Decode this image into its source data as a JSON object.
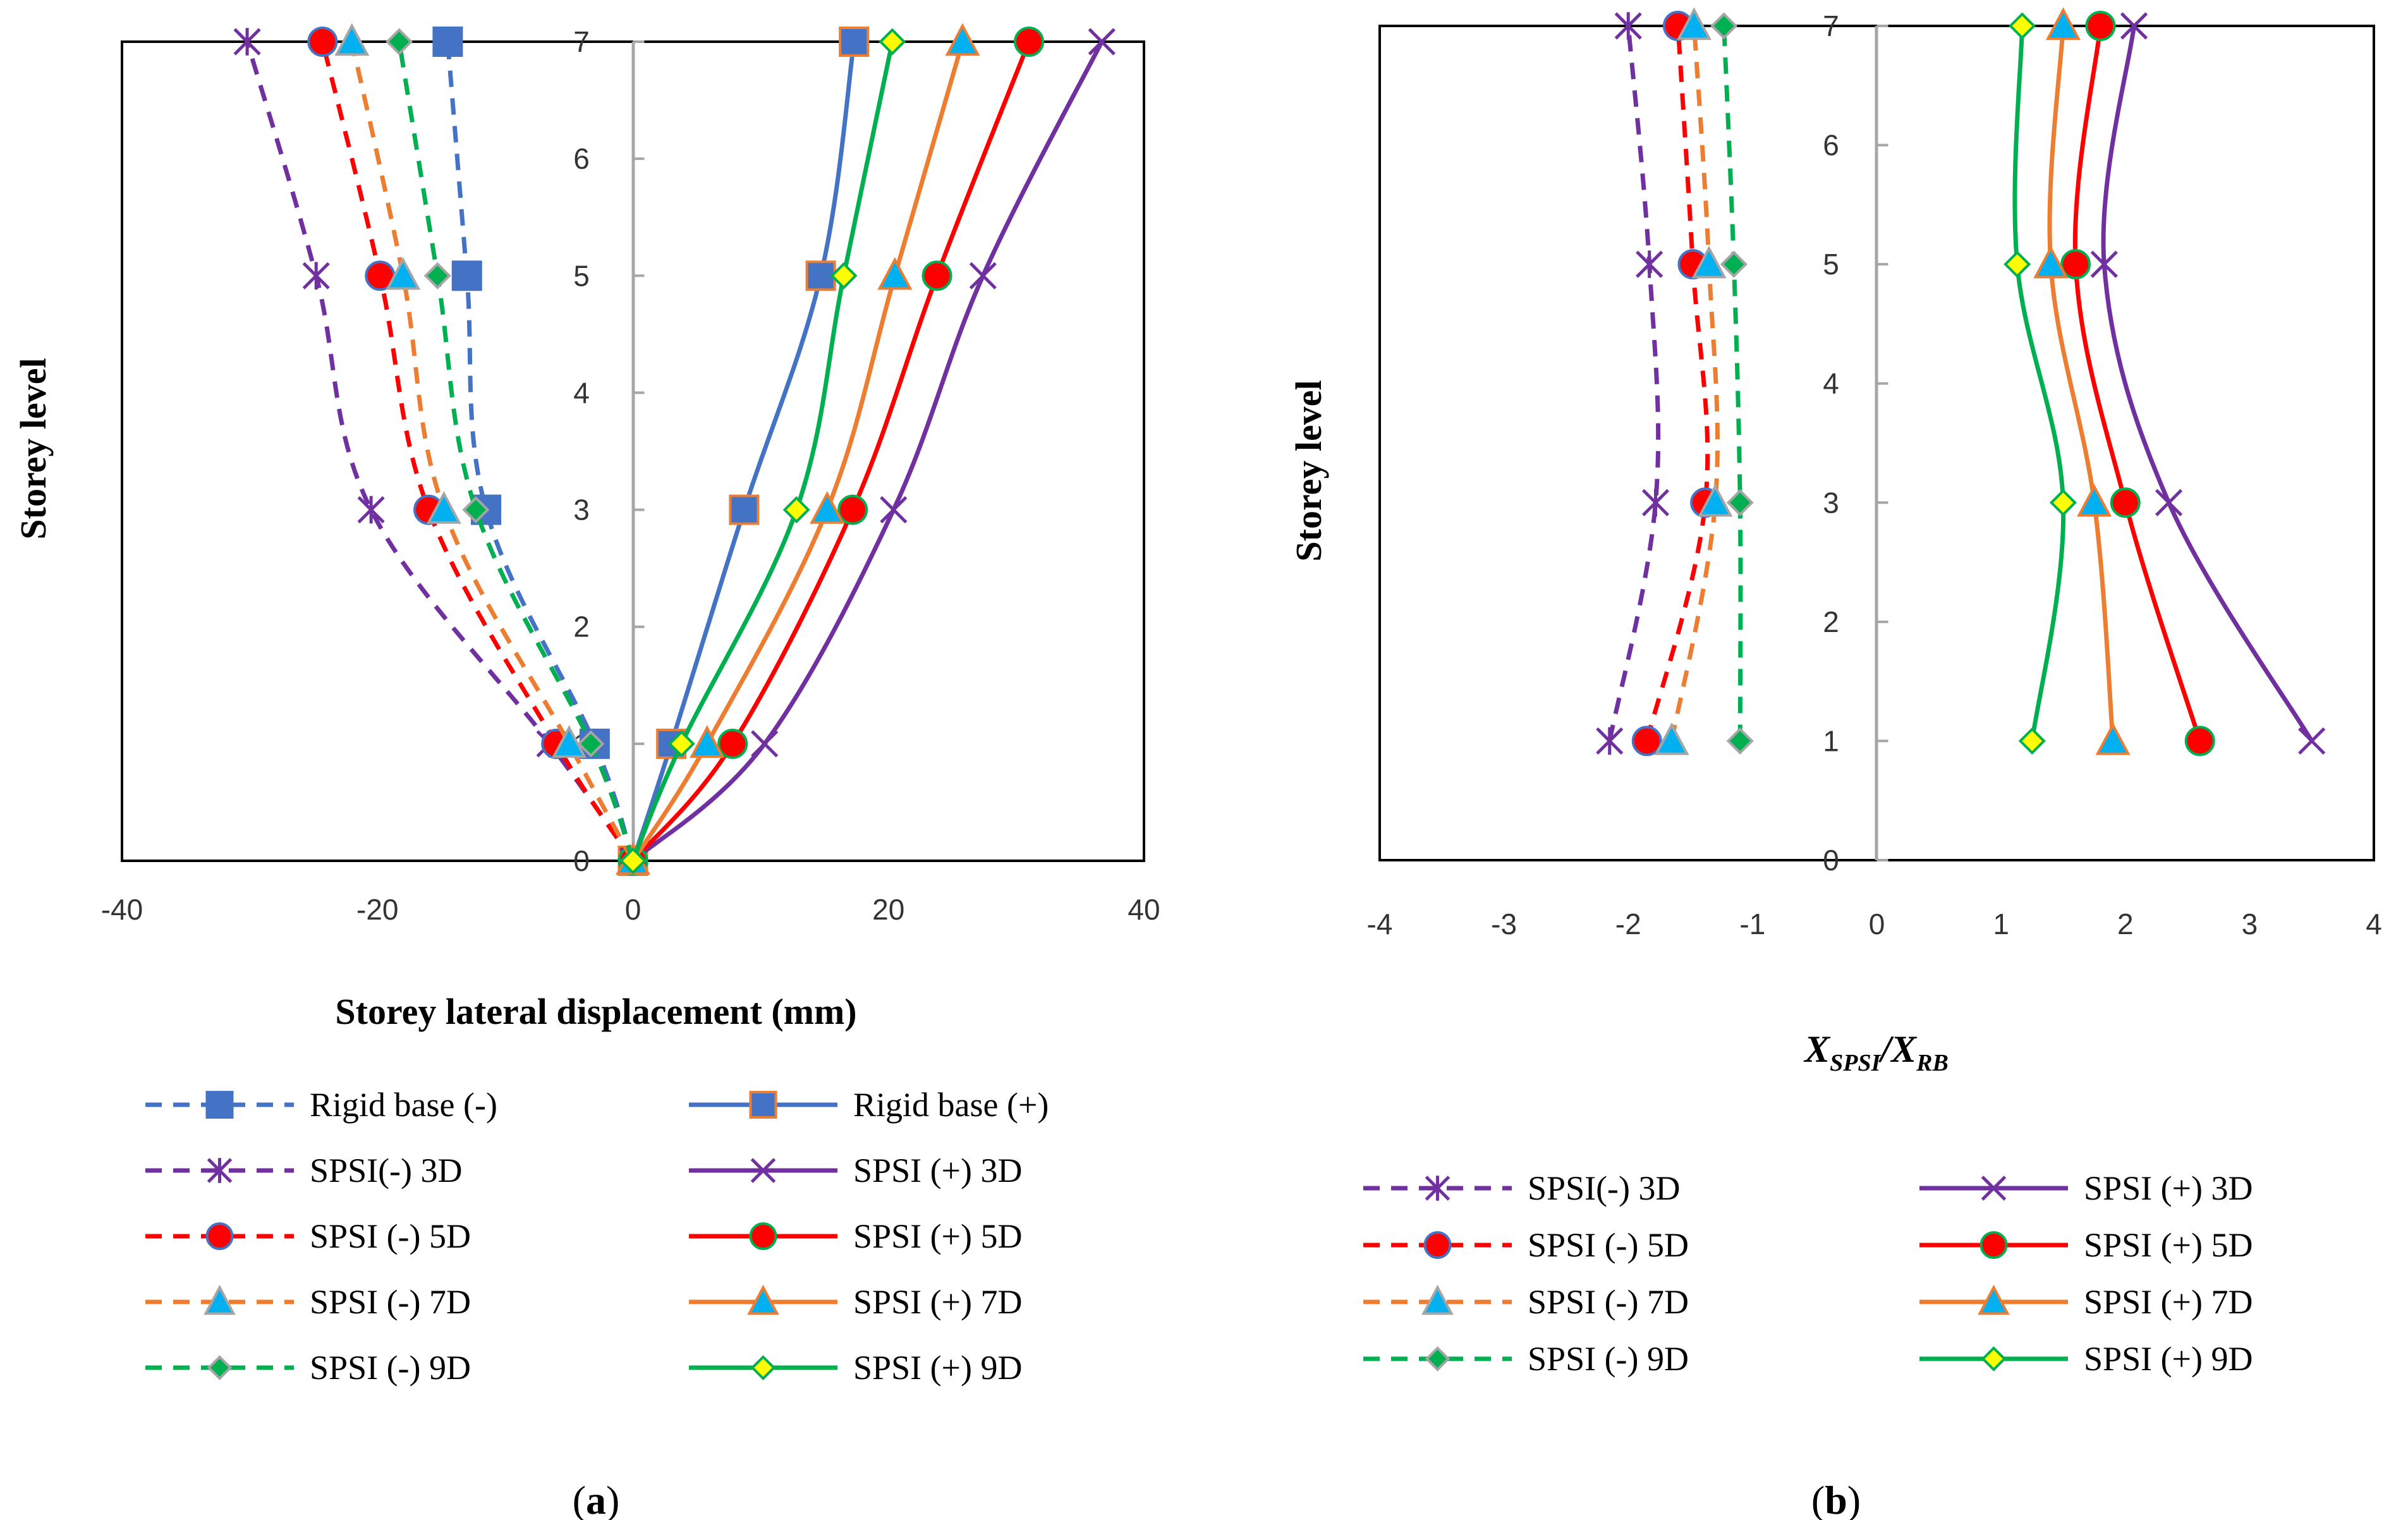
{
  "colors": {
    "rigid": "#4472C4",
    "rigid_marker_plus": "#4472C4",
    "rigid_marker_plus_edge": "#ED7D31",
    "d3": "#7030A0",
    "d5": "#FF0000",
    "d7": "#ED7D31",
    "d9": "#00B050",
    "marker_cyan": "#00B0F0",
    "marker_green": "#00B050",
    "marker_yellow": "#FFFF00",
    "marker_red": "#FF0000",
    "marker_edge_blue": "#4472C4",
    "marker_edge_grey": "#A5A5A5",
    "marker_edge_orange": "#ED7D31",
    "marker_edge_yellow": "#FFC000",
    "marker_edge_dkgreen": "#00B050",
    "axis": "#000000",
    "zero_line": "#A6A6A6",
    "tick_text": "#333333"
  },
  "chart_data": [
    {
      "panel": "a",
      "type": "line",
      "label_text": "a",
      "xlabel": "Storey lateral displacement (mm)",
      "ylabel": "Storey level",
      "xlim": [
        -40,
        40
      ],
      "ylim": [
        0,
        7
      ],
      "xticks": [
        "-40",
        "-20",
        "0",
        "20",
        "40"
      ],
      "yticks": [
        "0",
        "1",
        "2",
        "3",
        "4",
        "5",
        "6",
        "7"
      ],
      "legend_position": "bottom",
      "series": [
        {
          "name": "Rigid base (-)",
          "color_key": "rigid",
          "dashed": true,
          "marker": "square",
          "marker_fill": "rigid",
          "marker_edge": "rigid",
          "points": [
            [
              0,
              0
            ],
            [
              -3,
              1
            ],
            [
              -11.5,
              3
            ],
            [
              -13,
              5
            ],
            [
              -14.5,
              7
            ]
          ]
        },
        {
          "name": "Rigid base (+)",
          "color_key": "rigid",
          "dashed": false,
          "marker": "square",
          "marker_fill": "rigid",
          "marker_edge": "rigid_marker_plus_edge",
          "points": [
            [
              0,
              0
            ],
            [
              3,
              1
            ],
            [
              8.7,
              3
            ],
            [
              14.7,
              5
            ],
            [
              17.3,
              7
            ]
          ]
        },
        {
          "name": "SPSI(-) 3D",
          "color_key": "d3",
          "dashed": true,
          "marker": "asterisk",
          "marker_fill": "d3",
          "marker_edge": "d3",
          "points": [
            [
              0,
              0
            ],
            [
              -6.5,
              1
            ],
            [
              -20.5,
              3
            ],
            [
              -24.8,
              5
            ],
            [
              -30.2,
              7
            ]
          ]
        },
        {
          "name": "SPSI (+) 3D",
          "color_key": "d3",
          "dashed": false,
          "marker": "cross",
          "marker_fill": "d3",
          "marker_edge": "d3",
          "points": [
            [
              0,
              0
            ],
            [
              10.3,
              1
            ],
            [
              20.4,
              3
            ],
            [
              27.4,
              5
            ],
            [
              36.7,
              7
            ]
          ]
        },
        {
          "name": "SPSI (-) 5D",
          "color_key": "d5",
          "dashed": true,
          "marker": "circle",
          "marker_fill": "marker_red",
          "marker_edge": "marker_edge_blue",
          "points": [
            [
              0,
              0
            ],
            [
              -6,
              1
            ],
            [
              -16,
              3
            ],
            [
              -19.8,
              5
            ],
            [
              -24.3,
              7
            ]
          ]
        },
        {
          "name": "SPSI (+) 5D",
          "color_key": "d5",
          "dashed": false,
          "marker": "circle",
          "marker_fill": "marker_red",
          "marker_edge": "marker_edge_dkgreen",
          "points": [
            [
              0,
              0
            ],
            [
              7.8,
              1
            ],
            [
              17.2,
              3
            ],
            [
              23.8,
              5
            ],
            [
              31,
              7
            ]
          ]
        },
        {
          "name": "SPSI (-) 7D",
          "color_key": "d7",
          "dashed": true,
          "marker": "triangle",
          "marker_fill": "marker_cyan",
          "marker_edge": "marker_edge_grey",
          "points": [
            [
              0,
              0
            ],
            [
              -5,
              1
            ],
            [
              -14.8,
              3
            ],
            [
              -18,
              5
            ],
            [
              -22,
              7
            ]
          ]
        },
        {
          "name": "SPSI (+) 7D",
          "color_key": "d7",
          "dashed": false,
          "marker": "triangle",
          "marker_fill": "marker_cyan",
          "marker_edge": "marker_edge_orange",
          "points": [
            [
              0,
              0
            ],
            [
              5.8,
              1
            ],
            [
              15.2,
              3
            ],
            [
              20.5,
              5
            ],
            [
              25.8,
              7
            ]
          ]
        },
        {
          "name": "SPSI (-) 9D",
          "color_key": "d9",
          "dashed": true,
          "marker": "diamond",
          "marker_fill": "marker_green",
          "marker_edge": "marker_edge_grey",
          "points": [
            [
              0,
              0
            ],
            [
              -3.3,
              1
            ],
            [
              -12.3,
              3
            ],
            [
              -15.3,
              5
            ],
            [
              -18.3,
              7
            ]
          ]
        },
        {
          "name": "SPSI (+) 9D",
          "color_key": "d9",
          "dashed": false,
          "marker": "diamond",
          "marker_fill": "marker_yellow",
          "marker_edge": "marker_edge_dkgreen",
          "points": [
            [
              0,
              0
            ],
            [
              3.8,
              1
            ],
            [
              12.8,
              3
            ],
            [
              16.5,
              5
            ],
            [
              20.3,
              7
            ]
          ]
        }
      ]
    },
    {
      "panel": "b",
      "type": "line",
      "label_text": "b",
      "xlabel_main": "X",
      "xlabel_sub1": "SPSI",
      "xlabel_slash": "/",
      "xlabel_main2": "X",
      "xlabel_sub2": "RB",
      "ylabel": "Storey level",
      "xlim": [
        -4,
        4
      ],
      "ylim": [
        0,
        7
      ],
      "xticks": [
        "-4",
        "-3",
        "-2",
        "-1",
        "0",
        "1",
        "2",
        "3",
        "4"
      ],
      "yticks": [
        "0",
        "1",
        "2",
        "3",
        "4",
        "5",
        "6",
        "7"
      ],
      "legend_position": "bottom",
      "series": [
        {
          "name": "SPSI(-) 3D",
          "color_key": "d3",
          "dashed": true,
          "marker": "asterisk",
          "marker_fill": "d3",
          "marker_edge": "d3",
          "points": [
            [
              -2.15,
              1
            ],
            [
              -1.78,
              3
            ],
            [
              -1.83,
              5
            ],
            [
              -2,
              7
            ]
          ]
        },
        {
          "name": "SPSI (+) 3D",
          "color_key": "d3",
          "dashed": false,
          "marker": "cross",
          "marker_fill": "d3",
          "marker_edge": "d3",
          "points": [
            [
              3.5,
              1
            ],
            [
              2.35,
              3
            ],
            [
              1.83,
              5
            ],
            [
              2.07,
              7
            ]
          ]
        },
        {
          "name": "SPSI (-) 5D",
          "color_key": "d5",
          "dashed": true,
          "marker": "circle",
          "marker_fill": "marker_red",
          "marker_edge": "marker_edge_blue",
          "points": [
            [
              -1.85,
              1
            ],
            [
              -1.38,
              3
            ],
            [
              -1.48,
              5
            ],
            [
              -1.6,
              7
            ]
          ]
        },
        {
          "name": "SPSI (+) 5D",
          "color_key": "d5",
          "dashed": false,
          "marker": "circle",
          "marker_fill": "marker_red",
          "marker_edge": "marker_edge_dkgreen",
          "points": [
            [
              2.6,
              1
            ],
            [
              2,
              3
            ],
            [
              1.6,
              5
            ],
            [
              1.8,
              7
            ]
          ]
        },
        {
          "name": "SPSI (-) 7D",
          "color_key": "d7",
          "dashed": true,
          "marker": "triangle",
          "marker_fill": "marker_cyan",
          "marker_edge": "marker_edge_grey",
          "points": [
            [
              -1.65,
              1
            ],
            [
              -1.3,
              3
            ],
            [
              -1.35,
              5
            ],
            [
              -1.47,
              7
            ]
          ]
        },
        {
          "name": "SPSI (+) 7D",
          "color_key": "d7",
          "dashed": false,
          "marker": "triangle",
          "marker_fill": "marker_cyan",
          "marker_edge": "marker_edge_orange",
          "points": [
            [
              1.9,
              1
            ],
            [
              1.75,
              3
            ],
            [
              1.4,
              5
            ],
            [
              1.5,
              7
            ]
          ]
        },
        {
          "name": "SPSI (-) 9D",
          "color_key": "d9",
          "dashed": true,
          "marker": "diamond",
          "marker_fill": "marker_green",
          "marker_edge": "marker_edge_grey",
          "points": [
            [
              -1.1,
              1
            ],
            [
              -1.1,
              3
            ],
            [
              -1.15,
              5
            ],
            [
              -1.23,
              7
            ]
          ]
        },
        {
          "name": "SPSI (+) 9D",
          "color_key": "d9",
          "dashed": false,
          "marker": "diamond",
          "marker_fill": "marker_yellow",
          "marker_edge": "marker_edge_dkgreen",
          "points": [
            [
              1.25,
              1
            ],
            [
              1.5,
              3
            ],
            [
              1.13,
              5
            ],
            [
              1.17,
              7
            ]
          ]
        }
      ]
    }
  ]
}
